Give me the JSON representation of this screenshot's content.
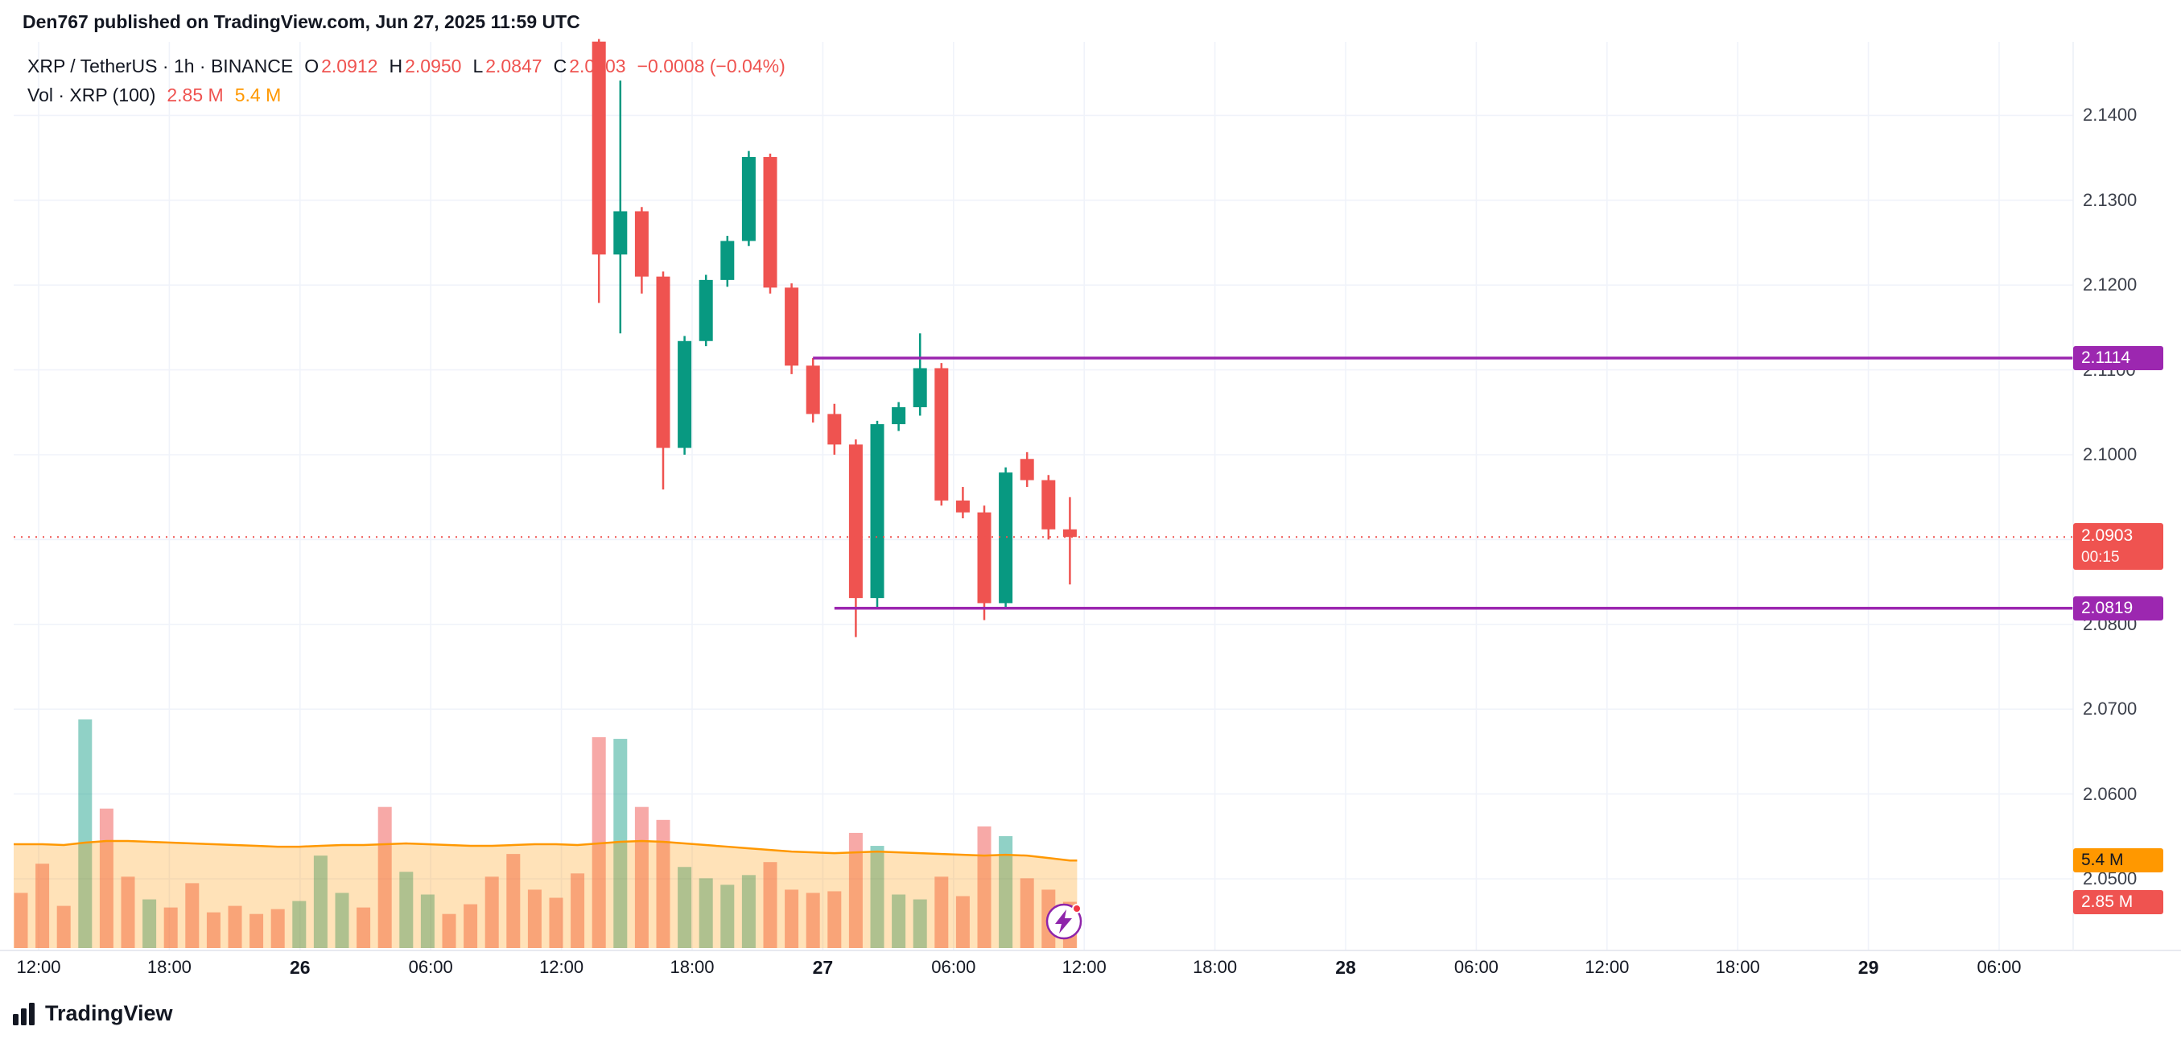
{
  "header": {
    "published_line": "Den767 published on TradingView.com, Jun 27, 2025 11:59 UTC"
  },
  "legend": {
    "symbol": "XRP / TetherUS · 1h · BINANCE",
    "o_label": "O",
    "o_value": "2.0912",
    "h_label": "H",
    "h_value": "2.0950",
    "l_label": "L",
    "l_value": "2.0847",
    "c_label": "C",
    "c_value": "2.0903",
    "change_value": "−0.0008 (−0.04%)",
    "vol_label": "Vol · XRP (100)",
    "vol_value": "2.85 M",
    "vol_ma_value": "5.4 M"
  },
  "price_axis": {
    "labels": [
      {
        "text": "2.1400",
        "price": 2.14
      },
      {
        "text": "2.1300",
        "price": 2.13
      },
      {
        "text": "2.1200",
        "price": 2.12
      },
      {
        "text": "2.1100",
        "price": 2.11
      },
      {
        "text": "2.1000",
        "price": 2.1
      },
      {
        "text": "2.0800",
        "price": 2.08
      },
      {
        "text": "2.0700",
        "price": 2.07
      },
      {
        "text": "2.0600",
        "price": 2.06
      },
      {
        "text": "2.0500",
        "price": 2.05
      }
    ],
    "resistance_label": {
      "text": "2.1114",
      "price": 2.1114
    },
    "last_price_label": {
      "text": "2.0903",
      "countdown": "00:15",
      "price": 2.0903
    },
    "support_label": {
      "text": "2.0819",
      "price": 2.0819
    },
    "vol_ma_label": {
      "text": "5.4 M",
      "value": 5.4
    },
    "vol_current_label": {
      "text": "2.85 M",
      "value": 2.85
    }
  },
  "time_axis": {
    "labels": [
      {
        "text": "12:00",
        "bold": false
      },
      {
        "text": "18:00",
        "bold": false
      },
      {
        "text": "26",
        "bold": true
      },
      {
        "text": "06:00",
        "bold": false
      },
      {
        "text": "12:00",
        "bold": false
      },
      {
        "text": "18:00",
        "bold": false
      },
      {
        "text": "27",
        "bold": true
      },
      {
        "text": "06:00",
        "bold": false
      },
      {
        "text": "12:00",
        "bold": false
      },
      {
        "text": "18:00",
        "bold": false
      },
      {
        "text": "28",
        "bold": true
      },
      {
        "text": "06:00",
        "bold": false
      },
      {
        "text": "12:00",
        "bold": false
      },
      {
        "text": "18:00",
        "bold": false
      },
      {
        "text": "29",
        "bold": true
      },
      {
        "text": "06:00",
        "bold": false
      }
    ]
  },
  "footer": {
    "brand": "TradingView"
  },
  "colors": {
    "up": "#089981",
    "down": "#ef5350",
    "vol_up": "rgba(8,153,129,0.45)",
    "vol_down": "rgba(239,83,80,0.5)",
    "vol_ma": "#ff9800",
    "vol_ma_fill": "rgba(255,152,0,0.28)",
    "level": "#9c27b0",
    "grid": "#f0f3fa",
    "separator": "#e0e3eb",
    "text": "#131722",
    "axis_text": "#3c404b"
  },
  "chart_data": {
    "type": "candlestick",
    "pair": "XRP / TetherUS",
    "interval": "1h",
    "exchange": "BINANCE",
    "last": {
      "open": 2.0912,
      "high": 2.095,
      "low": 2.0847,
      "close": 2.0903,
      "change": -0.0008,
      "change_pct": -0.04
    },
    "last_price": 2.0903,
    "countdown": "00:15",
    "visible_price_range": [
      2.045,
      2.152
    ],
    "levels": [
      {
        "price": 2.1114,
        "start_candle_index": 10
      },
      {
        "price": 2.0819,
        "start_candle_index": 11
      }
    ],
    "candles": [
      {
        "o": 2.1487,
        "h": 2.149,
        "l": 2.1179,
        "c": 2.1236,
        "v": 13.0
      },
      {
        "o": 2.1236,
        "h": 2.1441,
        "l": 2.1143,
        "c": 2.1287,
        "v": 12.9
      },
      {
        "o": 2.1287,
        "h": 2.1292,
        "l": 2.119,
        "c": 2.121,
        "v": 8.7
      },
      {
        "o": 2.121,
        "h": 2.1216,
        "l": 2.0959,
        "c": 2.1008,
        "v": 7.9
      },
      {
        "o": 2.1008,
        "h": 2.114,
        "l": 2.1,
        "c": 2.1134,
        "v": 5.0
      },
      {
        "o": 2.1134,
        "h": 2.1212,
        "l": 2.1128,
        "c": 2.1206,
        "v": 4.3
      },
      {
        "o": 2.1206,
        "h": 2.1258,
        "l": 2.1198,
        "c": 2.1252,
        "v": 3.9
      },
      {
        "o": 2.1252,
        "h": 2.1358,
        "l": 2.1246,
        "c": 2.1351,
        "v": 4.5
      },
      {
        "o": 2.1351,
        "h": 2.1355,
        "l": 2.119,
        "c": 2.1197,
        "v": 5.3
      },
      {
        "o": 2.1197,
        "h": 2.1202,
        "l": 2.1095,
        "c": 2.1105,
        "v": 3.6
      },
      {
        "o": 2.1105,
        "h": 2.1114,
        "l": 2.1038,
        "c": 2.1048,
        "v": 3.4
      },
      {
        "o": 2.1048,
        "h": 2.106,
        "l": 2.1,
        "c": 2.1012,
        "v": 3.5
      },
      {
        "o": 2.1012,
        "h": 2.1018,
        "l": 2.0785,
        "c": 2.0831,
        "v": 7.1
      },
      {
        "o": 2.0831,
        "h": 2.104,
        "l": 2.0819,
        "c": 2.1036,
        "v": 6.3
      },
      {
        "o": 2.1036,
        "h": 2.1062,
        "l": 2.1028,
        "c": 2.1056,
        "v": 3.3
      },
      {
        "o": 2.1056,
        "h": 2.1143,
        "l": 2.1046,
        "c": 2.1102,
        "v": 3.0
      },
      {
        "o": 2.1102,
        "h": 2.1108,
        "l": 2.094,
        "c": 2.0946,
        "v": 4.4
      },
      {
        "o": 2.0946,
        "h": 2.0962,
        "l": 2.0925,
        "c": 2.0932,
        "v": 3.2
      },
      {
        "o": 2.0932,
        "h": 2.094,
        "l": 2.0805,
        "c": 2.0825,
        "v": 7.5
      },
      {
        "o": 2.0825,
        "h": 2.0985,
        "l": 2.0818,
        "c": 2.0979,
        "v": 6.9
      },
      {
        "o": 2.0995,
        "h": 2.1003,
        "l": 2.0962,
        "c": 2.097,
        "v": 4.3
      },
      {
        "o": 2.097,
        "h": 2.0976,
        "l": 2.09,
        "c": 2.0912,
        "v": 3.6
      },
      {
        "o": 2.0912,
        "h": 2.095,
        "l": 2.0847,
        "c": 2.0903,
        "v": 2.85
      }
    ],
    "volume": {
      "current": 2.85,
      "ma": 5.4,
      "unit": "M",
      "history_bars": [
        {
          "v": 3.4,
          "dir": "down"
        },
        {
          "v": 5.2,
          "dir": "down"
        },
        {
          "v": 2.6,
          "dir": "down"
        },
        {
          "v": 14.1,
          "dir": "up"
        },
        {
          "v": 8.6,
          "dir": "down"
        },
        {
          "v": 4.4,
          "dir": "down"
        },
        {
          "v": 3.0,
          "dir": "up"
        },
        {
          "v": 2.5,
          "dir": "down"
        },
        {
          "v": 4.0,
          "dir": "down"
        },
        {
          "v": 2.2,
          "dir": "down"
        },
        {
          "v": 2.6,
          "dir": "down"
        },
        {
          "v": 2.1,
          "dir": "down"
        },
        {
          "v": 2.4,
          "dir": "down"
        },
        {
          "v": 2.9,
          "dir": "up"
        },
        {
          "v": 5.7,
          "dir": "up"
        },
        {
          "v": 3.4,
          "dir": "up"
        },
        {
          "v": 2.5,
          "dir": "down"
        },
        {
          "v": 8.7,
          "dir": "down"
        },
        {
          "v": 4.7,
          "dir": "up"
        },
        {
          "v": 3.3,
          "dir": "up"
        },
        {
          "v": 2.1,
          "dir": "down"
        },
        {
          "v": 2.7,
          "dir": "down"
        },
        {
          "v": 4.4,
          "dir": "down"
        },
        {
          "v": 5.8,
          "dir": "down"
        },
        {
          "v": 3.6,
          "dir": "down"
        },
        {
          "v": 3.1,
          "dir": "down"
        },
        {
          "v": 4.6,
          "dir": "down"
        }
      ],
      "ma_points": [
        6.4,
        6.4,
        6.35,
        6.5,
        6.6,
        6.6,
        6.55,
        6.5,
        6.45,
        6.4,
        6.35,
        6.3,
        6.25,
        6.25,
        6.3,
        6.35,
        6.35,
        6.4,
        6.45,
        6.4,
        6.35,
        6.3,
        6.3,
        6.35,
        6.4,
        6.4,
        6.35,
        6.45,
        6.55,
        6.6,
        6.55,
        6.45,
        6.35,
        6.25,
        6.15,
        6.05,
        5.95,
        5.9,
        5.85,
        5.9,
        5.95,
        5.9,
        5.85,
        5.8,
        5.75,
        5.7,
        5.75,
        5.7,
        5.55,
        5.4
      ]
    }
  }
}
